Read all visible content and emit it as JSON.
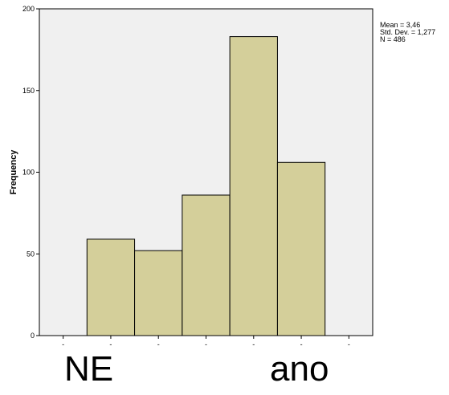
{
  "chart_data": {
    "type": "bar",
    "subtype": "histogram",
    "ylabel": "Frequency",
    "xlabel": "",
    "ylim": [
      0,
      200
    ],
    "yticks": [
      0,
      50,
      100,
      150,
      200
    ],
    "xlim": [
      -0.5,
      6.5
    ],
    "xticks": [
      0,
      1,
      2,
      3,
      4,
      5,
      6
    ],
    "xtick_labels": [
      "-",
      "-",
      "-",
      "-",
      "-",
      "-",
      "-"
    ],
    "bars": [
      {
        "x": 1,
        "value": 59
      },
      {
        "x": 2,
        "value": 52
      },
      {
        "x": 3,
        "value": 86
      },
      {
        "x": 4,
        "value": 183
      },
      {
        "x": 5,
        "value": 106
      }
    ],
    "bar_color": "#D4CF9A",
    "plot_background": "#F0F0F0",
    "grid": false,
    "stats": {
      "mean": "Mean = 3,46",
      "std_dev": "Std. Dev. = 1,277",
      "n": "N = 486"
    }
  },
  "overlay_text": {
    "left": "NE",
    "right": "ano"
  }
}
